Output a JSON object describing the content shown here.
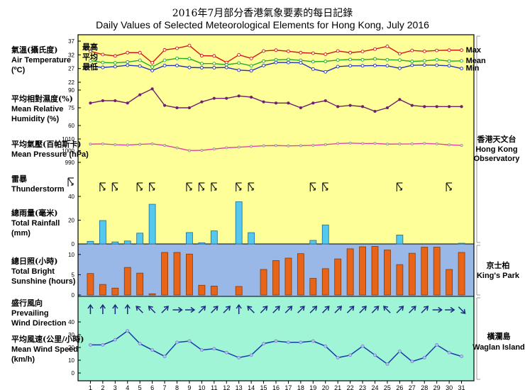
{
  "title_zh": "2016年7月部分香港氣象要素的每日記錄",
  "title_en": "Daily Values of Selected Meteorological Elements for Hong Kong, July 2016",
  "days": [
    1,
    2,
    3,
    4,
    5,
    6,
    7,
    8,
    9,
    10,
    11,
    12,
    13,
    14,
    15,
    16,
    17,
    18,
    19,
    20,
    21,
    22,
    23,
    24,
    25,
    26,
    27,
    28,
    29,
    30,
    31
  ],
  "stations": {
    "hko": {
      "zh": "香港天文台",
      "en1": "Hong Kong",
      "en2": "Observatory"
    },
    "kp": {
      "zh": "京士柏",
      "en": "King's Park"
    },
    "wgl": {
      "zh": "橫瀾島",
      "en": "Waglan Island"
    }
  },
  "colors": {
    "upper_bg": "#ffff99",
    "sun_bg": "#99b8e8",
    "wind_bg": "#9ff5d6",
    "max": "#d01818",
    "mean": "#22aa22",
    "min": "#2233bb",
    "humidity": "#702070",
    "pressure": "#e040b0",
    "rain_bar": "#55c8ee",
    "sun_bar": "#e86418",
    "wind_line": "#1a3aa8",
    "wind_arrow": "#1a2a80"
  },
  "chart_data": [
    {
      "type": "line",
      "panel": "temperature",
      "label_zh": "氣溫(攝氏度)",
      "label_en": [
        "Air Temperature",
        "(ºC)"
      ],
      "yticks": [
        22,
        27,
        32,
        37
      ],
      "ylim": [
        22,
        37
      ],
      "series": [
        {
          "name": "Max",
          "name_zh": "最高",
          "values": [
            33.3,
            32.1,
            31.6,
            32.8,
            32.8,
            29.1,
            33.8,
            34.4,
            35.4,
            31.7,
            31.6,
            29.2,
            32.0,
            30.7,
            33.4,
            33.7,
            33.3,
            32.8,
            32.6,
            32.2,
            33.4,
            32.8,
            33.2,
            34.1,
            35.1,
            32.4,
            33.6,
            33.3,
            33.6,
            33.7,
            33.7
          ]
        },
        {
          "name": "Mean",
          "name_zh": "平均",
          "values": [
            29.9,
            29.2,
            29.1,
            29.4,
            30.0,
            27.6,
            30.0,
            30.7,
            30.6,
            28.8,
            28.8,
            28.4,
            29.0,
            28.0,
            29.7,
            30.2,
            30.3,
            30.0,
            29.5,
            29.6,
            30.1,
            30.3,
            30.2,
            30.5,
            30.2,
            30.1,
            29.6,
            29.8,
            30.2,
            29.7,
            29.8
          ]
        },
        {
          "name": "Min",
          "name_zh": "最低",
          "values": [
            27.9,
            27.4,
            27.7,
            28.2,
            27.9,
            26.3,
            28.1,
            28.1,
            27.4,
            27.3,
            27.3,
            27.4,
            26.4,
            26.2,
            28.1,
            29.2,
            29.2,
            29.1,
            26.8,
            25.8,
            27.7,
            28.0,
            28.0,
            28.1,
            28.0,
            27.1,
            28.2,
            28.3,
            28.2,
            28.0,
            27.0
          ]
        }
      ]
    },
    {
      "type": "line",
      "panel": "humidity",
      "label_zh": "平均相對濕度(%)",
      "label_en": [
        "Mean Relative",
        "Humidity  (%)"
      ],
      "yticks": [
        60,
        75,
        90
      ],
      "ylim": [
        60,
        90
      ],
      "series": [
        {
          "name": "Mean Relative Humidity",
          "values": [
            79,
            81,
            81,
            79,
            86,
            91,
            77,
            75,
            75,
            80,
            83,
            83,
            85,
            84,
            80,
            79,
            79,
            75,
            79,
            81,
            76,
            77,
            76,
            72,
            75,
            82,
            77,
            76,
            76,
            76,
            76
          ]
        }
      ]
    },
    {
      "type": "line",
      "panel": "pressure",
      "label_zh": "平均氣壓(百帕斯卡)",
      "label_en": [
        "Mean Pressure (hPa)"
      ],
      "yticks": [
        990,
        1000,
        1010
      ],
      "ylim": [
        990,
        1010
      ],
      "series": [
        {
          "name": "Mean Pressure",
          "values": [
            1005.6,
            1005.8,
            1005.1,
            1004.8,
            1005.4,
            1005.9,
            1004.5,
            1002.4,
            1000.1,
            1000.3,
            1001.4,
            1002.5,
            1003.0,
            1003.6,
            1004.2,
            1004.4,
            1004.1,
            1004.3,
            1004.6,
            1005.2,
            1006.1,
            1006.5,
            1006.1,
            1006.2,
            1005.6,
            1005.7,
            1005.8,
            1006.2,
            1005.8,
            1005.0,
            1004.5
          ]
        }
      ]
    },
    {
      "type": "scatter",
      "panel": "thunderstorm",
      "label_zh": "雷暴",
      "label_en": [
        "Thunderstorm"
      ],
      "days_with_thunderstorm": [
        2,
        3,
        5,
        6,
        9,
        10,
        11,
        13,
        14,
        19,
        20,
        26,
        30
      ]
    },
    {
      "type": "bar",
      "panel": "rainfall",
      "label_zh": "總雨量(毫米)",
      "label_en": [
        "Total Rainfall",
        "(mm)"
      ],
      "yticks": [
        0,
        20,
        40
      ],
      "ylim": [
        0,
        40
      ],
      "values": [
        2.2,
        19.7,
        1.7,
        2.5,
        9.1,
        33.4,
        0,
        0,
        9.6,
        1.0,
        11.0,
        0,
        35.5,
        9.5,
        0,
        0,
        0,
        0,
        3.0,
        16.0,
        0,
        0,
        0,
        0,
        0,
        7.5,
        0,
        0,
        0,
        0,
        0.6
      ]
    },
    {
      "type": "bar",
      "panel": "sunshine",
      "label_zh": "總日照(小時)",
      "label_en": [
        "Total Bright",
        "Sunshine  (hours)"
      ],
      "yticks": [
        0,
        5,
        10
      ],
      "ylim": [
        0,
        12.6
      ],
      "values": [
        5.3,
        2.6,
        1.7,
        6.8,
        5.4,
        0.3,
        10.5,
        10.5,
        10.1,
        2.4,
        2.2,
        0,
        2.1,
        0,
        6.3,
        8.5,
        9.1,
        10.2,
        4.1,
        6.5,
        8.9,
        11.4,
        11.9,
        12.0,
        11.1,
        7.5,
        10.3,
        11.8,
        11.8,
        6.3,
        10.5
      ]
    },
    {
      "type": "scatter",
      "panel": "wind_direction",
      "label_zh": "盛行風向",
      "label_en": [
        "Prevailing",
        "Wind Direction"
      ],
      "direction_deg": [
        0,
        0,
        0,
        0,
        315,
        315,
        45,
        90,
        90,
        45,
        45,
        45,
        0,
        315,
        45,
        45,
        45,
        45,
        45,
        45,
        45,
        45,
        45,
        45,
        315,
        45,
        45,
        45,
        90,
        90,
        135
      ]
    },
    {
      "type": "line",
      "panel": "wind_speed",
      "label_zh": "平均風速(公里/小時)",
      "label_en": [
        "Mean Wind Speed",
        "(km/h)"
      ],
      "yticks": [
        0,
        10,
        20,
        30,
        40
      ],
      "ylim": [
        0,
        45
      ],
      "values": [
        22,
        22,
        26,
        33,
        23,
        18,
        13,
        24,
        25,
        18,
        19,
        16,
        12,
        14,
        23,
        25,
        24,
        24,
        25,
        21,
        12,
        14,
        21,
        14,
        7,
        17,
        9,
        12,
        22,
        16,
        13
      ]
    }
  ]
}
